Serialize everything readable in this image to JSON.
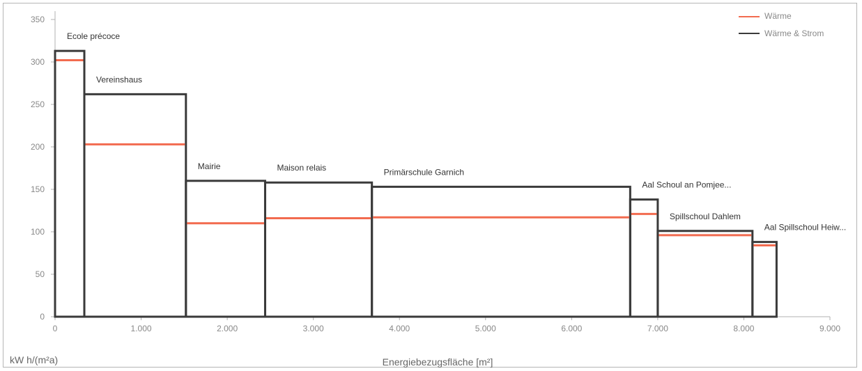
{
  "chart_data": {
    "type": "step",
    "title": "",
    "xlabel": "Energiebezugsfläche [m²]",
    "ylabel": "kW h/(m²a)",
    "xlim": [
      0,
      9000
    ],
    "ylim": [
      0,
      350
    ],
    "x_ticks": [
      "0",
      "1.000",
      "2.000",
      "3.000",
      "4.000",
      "5.000",
      "6.000",
      "7.000",
      "8.000",
      "9.000"
    ],
    "y_ticks": [
      "0",
      "50",
      "100",
      "150",
      "200",
      "250",
      "300",
      "350"
    ],
    "grid": false,
    "legend_position": "top-right",
    "series": [
      {
        "name": "Wärme",
        "color": "#f26b4f"
      },
      {
        "name": "Wärme & Strom",
        "color": "#3a3a3a"
      }
    ],
    "buildings": [
      {
        "label": "Ecole précoce",
        "x_start": 0,
        "x_end": 340,
        "waerme": 302,
        "waerme_strom": 313
      },
      {
        "label": "Vereinshaus",
        "x_start": 340,
        "x_end": 1520,
        "waerme": 203,
        "waerme_strom": 262
      },
      {
        "label": "Mairie",
        "x_start": 1520,
        "x_end": 2440,
        "waerme": 110,
        "waerme_strom": 160
      },
      {
        "label": "Maison relais",
        "x_start": 2440,
        "x_end": 3680,
        "waerme": 116,
        "waerme_strom": 158
      },
      {
        "label": "Primärschule Garnich",
        "x_start": 3680,
        "x_end": 6680,
        "waerme": 117,
        "waerme_strom": 153
      },
      {
        "label": "Aal Schoul an Pomjee...",
        "x_start": 6680,
        "x_end": 7000,
        "waerme": 121,
        "waerme_strom": 138
      },
      {
        "label": "Spillschoul Dahlem",
        "x_start": 7000,
        "x_end": 8100,
        "waerme": 96,
        "waerme_strom": 101
      },
      {
        "label": "Aal Spillschoul Heiw...",
        "x_start": 8100,
        "x_end": 8380,
        "waerme": 84,
        "waerme_strom": 88
      }
    ]
  }
}
